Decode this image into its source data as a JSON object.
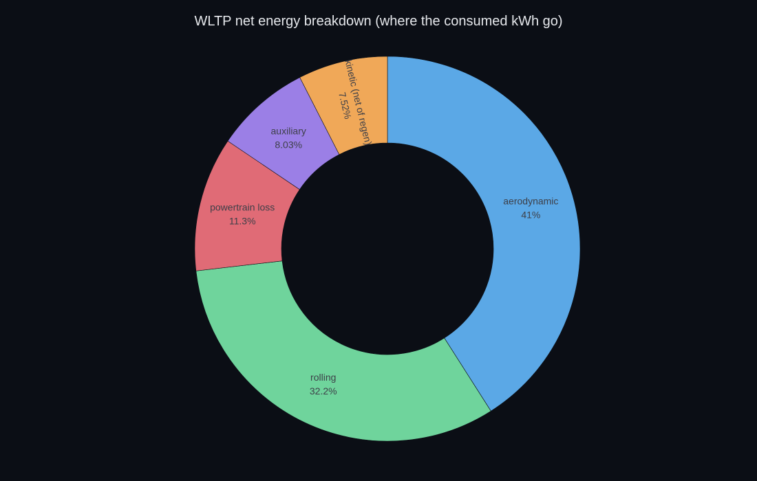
{
  "chart_data": {
    "type": "pie",
    "title": "WLTP net energy breakdown (where the consumed kWh go)",
    "hole": 0.55,
    "sort": "descending",
    "direction": "clockwise",
    "slices": [
      {
        "label": "aerodynamic",
        "percent_label": "41%",
        "value": 41.0,
        "color": "#5ba8e6"
      },
      {
        "label": "rolling",
        "percent_label": "32.2%",
        "value": 32.2,
        "color": "#6fd49c"
      },
      {
        "label": "powertrain loss",
        "percent_label": "11.3%",
        "value": 11.3,
        "color": "#e06b76"
      },
      {
        "label": "auxiliary",
        "percent_label": "8.03%",
        "value": 8.03,
        "color": "#9b7fe6"
      },
      {
        "label": "kinetic (net of regen)",
        "percent_label": "7.52%",
        "value": 7.52,
        "color": "#f0a858"
      }
    ]
  },
  "colors": {
    "background": "#0b0e15",
    "title": "#e6e8ec",
    "label_text": "#3d3f48",
    "slice_border": "#0b0e15"
  }
}
